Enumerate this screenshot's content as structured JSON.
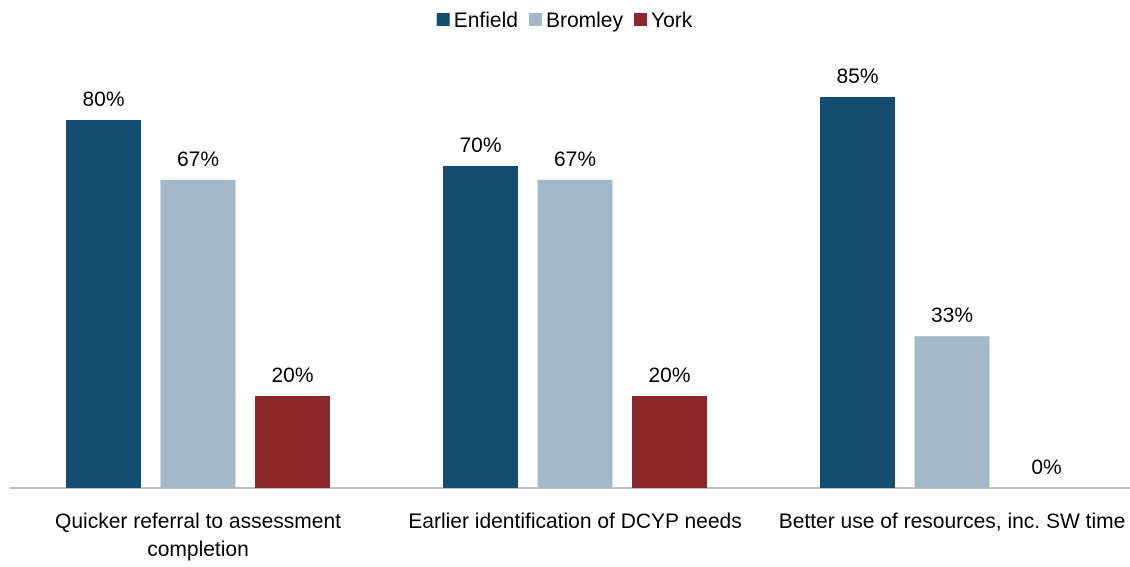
{
  "chart_data": {
    "type": "bar",
    "categories": [
      "Quicker referral to assessment completion",
      "Earlier identification of DCYP needs",
      "Better use of resources, inc. SW time"
    ],
    "series": [
      {
        "name": "Enfield",
        "color": "#134e71",
        "values": [
          80,
          70,
          85
        ],
        "value_labels": [
          "80%",
          "70%",
          "85%"
        ]
      },
      {
        "name": "Bromley",
        "color": "#a3b9c9",
        "values": [
          67,
          67,
          33
        ],
        "value_labels": [
          "67%",
          "67%",
          "33%"
        ]
      },
      {
        "name": "York",
        "color": "#8c272b",
        "values": [
          20,
          20,
          0
        ],
        "value_labels": [
          "20%",
          "20%",
          "0%"
        ]
      }
    ],
    "ylim": [
      0,
      100
    ],
    "legend": "top"
  }
}
